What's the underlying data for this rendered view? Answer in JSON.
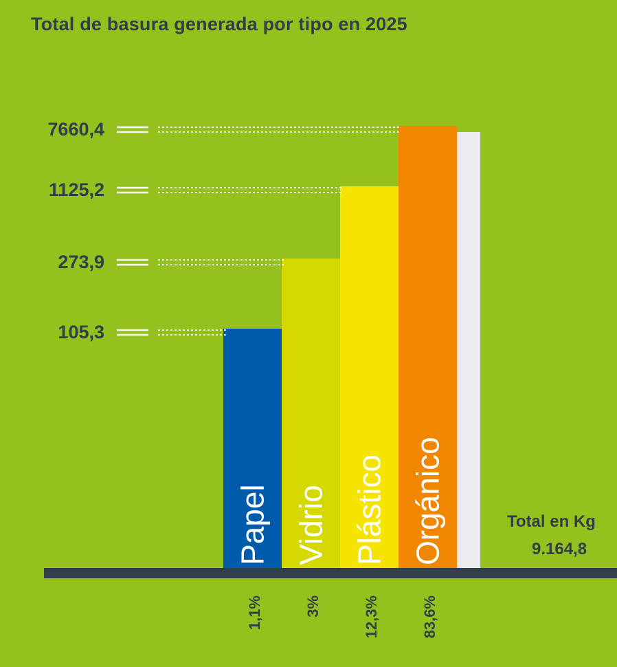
{
  "chart_data": {
    "type": "bar",
    "title": "Total de basura generada por tipo en 2025",
    "categories": [
      "Papel",
      "Vidrio",
      "Plástico",
      "Orgánico"
    ],
    "values": [
      105.3,
      273.9,
      1125.2,
      7660.4
    ],
    "value_labels": [
      "105,3",
      "273,9",
      "1125,2",
      "7660,4"
    ],
    "percentages": [
      "1,1%",
      "3%",
      "12,3%",
      "83,6%"
    ],
    "colors": [
      "#005bab",
      "#d6d900",
      "#f4e400",
      "#f18700"
    ],
    "total": {
      "label": "Total en Kg",
      "value": "9.164,8",
      "value_number": 9164.8,
      "color": "#ebebee"
    },
    "axis_color": "#333f48",
    "text_color": "#333f48",
    "grid": false,
    "scale": "ordinal (equal steps per value level)"
  }
}
